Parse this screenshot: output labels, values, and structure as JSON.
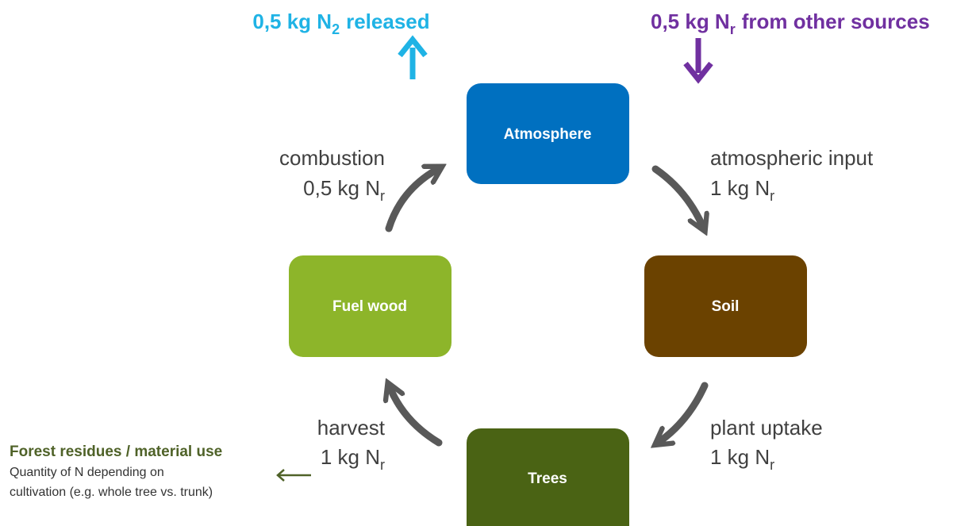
{
  "top_left": {
    "parts": [
      "0,5 kg N",
      "2",
      "released"
    ]
  },
  "top_right": {
    "parts": [
      "0,5 kg N",
      "r",
      "from other sources"
    ]
  },
  "nodes": [
    "Atmosphere",
    "Soil",
    "Trees",
    "Fuel wood"
  ],
  "edges": [
    {
      "label": "combustion",
      "amount": [
        "0,5 kg N",
        "r"
      ]
    },
    {
      "label": "atmospheric input",
      "amount": [
        "1 kg N",
        "r"
      ]
    },
    {
      "label": "plant uptake",
      "amount": [
        "1 kg N",
        "r"
      ]
    },
    {
      "label": "harvest",
      "amount": [
        "1 kg N",
        "r"
      ]
    }
  ],
  "note": {
    "title": "Forest residues / material use",
    "lines": [
      "Quantity of N depending on",
      "cultivation (e.g. whole tree vs. trunk)"
    ]
  }
}
